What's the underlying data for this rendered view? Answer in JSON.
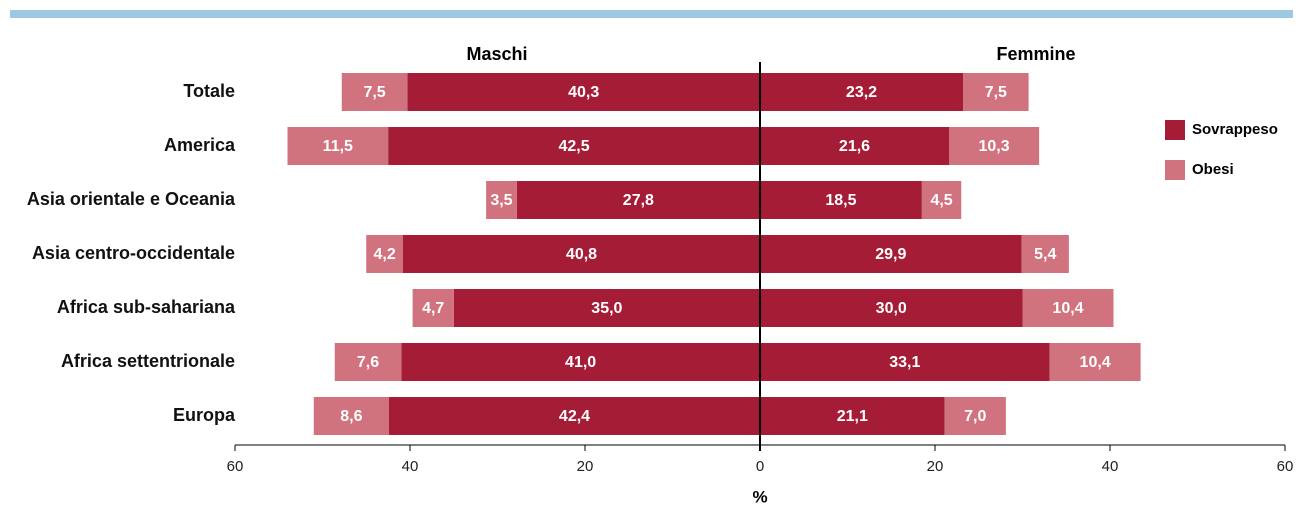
{
  "chart_data": {
    "type": "bar",
    "sides": [
      "Maschi",
      "Femmine"
    ],
    "categories": [
      "Totale",
      "America",
      "Asia orientale e Oceania",
      "Asia centro-occidentale",
      "Africa sub-sahariana",
      "Africa settentrionale",
      "Europa"
    ],
    "series": [
      {
        "name": "Sovrappeso",
        "color": "#a51c36",
        "values": [
          [
            40.3,
            42.5,
            27.8,
            40.8,
            35.0,
            41.0,
            42.4
          ],
          [
            23.2,
            21.6,
            18.5,
            29.9,
            30.0,
            33.1,
            21.1
          ]
        ],
        "value_labels": [
          [
            "40,3",
            "42,5",
            "27,8",
            "40,8",
            "35,0",
            "41,0",
            "42,4"
          ],
          [
            "23,2",
            "21,6",
            "18,5",
            "29,9",
            "30,0",
            "33,1",
            "21,1"
          ]
        ]
      },
      {
        "name": "Obesi",
        "color": "#d0737f",
        "values": [
          [
            7.5,
            11.5,
            3.5,
            4.2,
            4.7,
            7.6,
            8.6
          ],
          [
            7.5,
            10.3,
            4.5,
            5.4,
            10.4,
            10.4,
            7.0
          ]
        ],
        "value_labels": [
          [
            "7,5",
            "11,5",
            "3,5",
            "4,2",
            "4,7",
            "7,6",
            "8,6"
          ],
          [
            "7,5",
            "10,3",
            "4,5",
            "5,4",
            "10,4",
            "10,4",
            "7,0"
          ]
        ]
      }
    ],
    "x_label": "%",
    "xlim": [
      -60,
      60
    ],
    "xticks": [
      {
        "value": -60,
        "label": "60"
      },
      {
        "value": -40,
        "label": "40"
      },
      {
        "value": -20,
        "label": "20"
      },
      0,
      20,
      40,
      60
    ]
  }
}
